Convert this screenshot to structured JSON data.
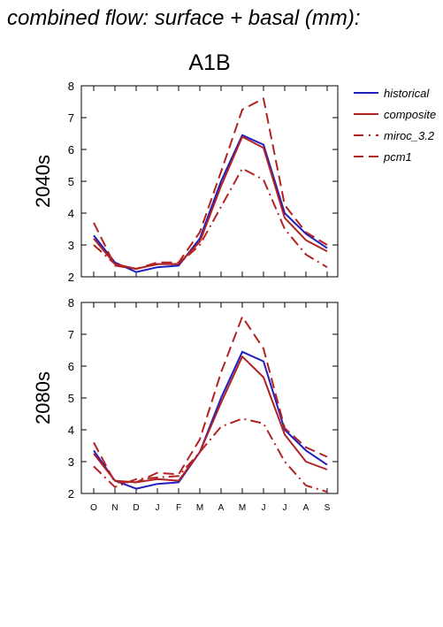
{
  "page": {
    "title": "combined flow: surface + basal (mm):",
    "scenario": "A1B"
  },
  "chart_data": {
    "type": "line",
    "x_categories": [
      "O",
      "N",
      "D",
      "J",
      "F",
      "M",
      "A",
      "M",
      "J",
      "J",
      "A",
      "S"
    ],
    "ylim": [
      2,
      8
    ],
    "yticks": [
      "2",
      "3",
      "4",
      "5",
      "6",
      "7",
      "8"
    ],
    "legend": {
      "position": "right",
      "entries": [
        {
          "name": "historical",
          "color": "#1f1fbf",
          "dash": "solid"
        },
        {
          "name": "composite",
          "color": "#b22222",
          "dash": "solid"
        },
        {
          "name": "miroc_3.2",
          "color": "#b22222",
          "dash": "dashdot"
        },
        {
          "name": "pcm1",
          "color": "#b22222",
          "dash": "dashed"
        }
      ]
    },
    "panels": [
      {
        "label": "2040s",
        "series": [
          {
            "name": "historical",
            "values": [
              3.3,
              2.45,
              2.15,
              2.3,
              2.35,
              3.2,
              5.0,
              6.45,
              6.15,
              4.0,
              3.35,
              2.9
            ]
          },
          {
            "name": "composite",
            "values": [
              3.2,
              2.4,
              2.25,
              2.4,
              2.4,
              3.1,
              4.85,
              6.4,
              6.05,
              3.85,
              3.15,
              2.8
            ]
          },
          {
            "name": "miroc_3.2",
            "values": [
              3.0,
              2.4,
              2.25,
              2.4,
              2.4,
              3.0,
              4.2,
              5.4,
              5.05,
              3.5,
              2.7,
              2.3
            ]
          },
          {
            "name": "pcm1",
            "values": [
              3.7,
              2.35,
              2.25,
              2.45,
              2.45,
              3.4,
              5.3,
              7.25,
              7.6,
              4.25,
              3.4,
              3.0
            ]
          }
        ]
      },
      {
        "label": "2080s",
        "series": [
          {
            "name": "historical",
            "values": [
              3.35,
              2.4,
              2.15,
              2.3,
              2.35,
              3.3,
              5.0,
              6.45,
              6.15,
              4.0,
              3.35,
              2.9
            ]
          },
          {
            "name": "composite",
            "values": [
              3.25,
              2.4,
              2.35,
              2.45,
              2.4,
              3.3,
              4.85,
              6.3,
              5.65,
              3.85,
              3.0,
              2.75
            ]
          },
          {
            "name": "miroc_3.2",
            "values": [
              2.85,
              2.2,
              2.45,
              2.5,
              2.55,
              3.3,
              4.1,
              4.35,
              4.2,
              3.0,
              2.25,
              2.05
            ]
          },
          {
            "name": "pcm1",
            "values": [
              3.6,
              2.35,
              2.35,
              2.65,
              2.6,
              3.7,
              5.8,
              7.55,
              6.55,
              4.05,
              3.45,
              3.15
            ]
          }
        ]
      }
    ]
  }
}
